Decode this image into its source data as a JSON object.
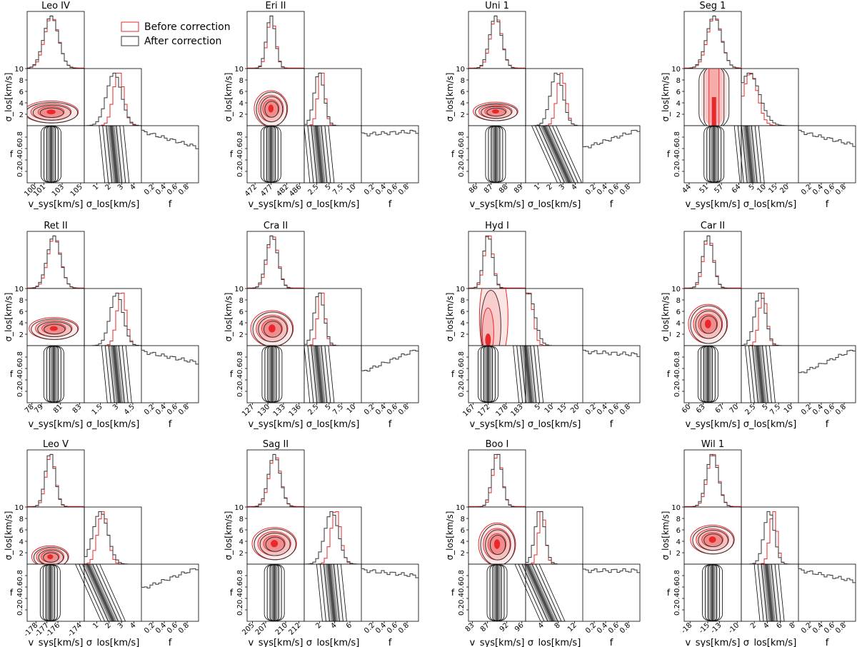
{
  "figure": {
    "legend": [
      {
        "label": "Before correction",
        "color": "#e8282a"
      },
      {
        "label": "After correction",
        "color": "#333333"
      }
    ],
    "colors": {
      "before": "#e8282a",
      "after": "#333333",
      "grey_density": "#222222"
    }
  },
  "chart_data": [
    {
      "type": "heatmap",
      "title": "Leo IV",
      "xlabels": [
        "v_sys[km/s]",
        "σ_los[km/s]",
        "f"
      ],
      "ylabels": [
        "σ_los[km/s]",
        "f"
      ],
      "v_sys": {
        "ticks": [
          100,
          101,
          103,
          105
        ],
        "range": [
          99.2,
          105.4
        ],
        "peak": 101.8,
        "width": 0.8
      },
      "sigma": {
        "ticks": [
          1,
          2,
          3,
          4
        ],
        "range": [
          0,
          4.6
        ],
        "peak": 2.4,
        "width": 0.6,
        "ylim": [
          0,
          10
        ],
        "ytick": [
          2,
          4,
          6,
          8,
          10
        ]
      },
      "f": {
        "ticks": [
          0.2,
          0.4,
          0.6,
          0.8
        ],
        "slope": -0.3
      },
      "mode": "normal"
    },
    {
      "type": "heatmap",
      "title": "Eri II",
      "xlabels": [
        "v_sys[km/s]",
        "σ_los[km/s]",
        "f"
      ],
      "ylabels": [
        "σ_los[km/s]",
        "f"
      ],
      "v_sys": {
        "ticks": [
          472,
          477,
          482,
          486
        ],
        "range": [
          469.5,
          487.5
        ],
        "peak": 477,
        "width": 1.4
      },
      "sigma": {
        "ticks": [
          2.5,
          5.0,
          7.5,
          10.0
        ],
        "range": [
          0,
          11.5
        ],
        "peak": 3.0,
        "width": 1.0,
        "ylim": [
          0,
          10
        ],
        "ytick": [
          2,
          4,
          6,
          8,
          10
        ]
      },
      "f": {
        "ticks": [
          0.2,
          0.4,
          0.6,
          0.8
        ],
        "slope": 0.05
      },
      "mode": "normal"
    },
    {
      "type": "heatmap",
      "title": "Uni 1",
      "xlabels": [
        "v_sys[km/s]",
        "σ_los[km/s]",
        "f"
      ],
      "ylabels": [
        "σ_los[km/s]",
        "f"
      ],
      "v_sys": {
        "ticks": [
          86,
          87,
          88,
          89
        ],
        "range": [
          85.5,
          89.3
        ],
        "peak": 87.3,
        "width": 0.4
      },
      "sigma": {
        "ticks": [
          1,
          2,
          3,
          4
        ],
        "range": [
          0,
          4.6
        ],
        "peak": 2.5,
        "width": 0.5,
        "ylim": [
          0,
          10
        ],
        "ytick": [
          2,
          4,
          6,
          8,
          10
        ]
      },
      "f": {
        "ticks": [
          0.2,
          0.4,
          0.6,
          0.8
        ],
        "slope": 0.35
      },
      "mode": "diag"
    },
    {
      "type": "heatmap",
      "title": "Seg 1",
      "xlabels": [
        "v_sys[km/s]",
        "σ_los[km/s]",
        "f"
      ],
      "ylabels": [
        "σ_los[km/s]",
        "f"
      ],
      "v_sys": {
        "ticks": [
          44,
          51,
          57,
          64
        ],
        "range": [
          42,
          65
        ],
        "peak": 54,
        "width": 3.0
      },
      "sigma": {
        "ticks": [
          5,
          10,
          15,
          20
        ],
        "range": [
          0,
          25
        ],
        "peak": 3.5,
        "width": 4.5,
        "ylim": [
          0,
          10
        ],
        "ytick": [
          2,
          4,
          6,
          8,
          10
        ]
      },
      "f": {
        "ticks": [
          0.2,
          0.4,
          0.6,
          0.8
        ],
        "slope": -0.25
      },
      "mode": "seg"
    },
    {
      "type": "heatmap",
      "title": "Ret II",
      "xlabels": [
        "v_sys[km/s]",
        "σ_los[km/s]",
        "f"
      ],
      "ylabels": [
        "σ_los[km/s]",
        "f"
      ],
      "v_sys": {
        "ticks": [
          78,
          79,
          81,
          83
        ],
        "range": [
          77.5,
          83.5
        ],
        "peak": 80.3,
        "width": 0.7
      },
      "sigma": {
        "ticks": [
          1.5,
          3.0,
          4.5
        ],
        "range": [
          0,
          5.3
        ],
        "peak": 3.0,
        "width": 0.6,
        "ylim": [
          0,
          10
        ],
        "ytick": [
          2,
          4,
          6,
          8,
          10
        ]
      },
      "f": {
        "ticks": [
          0.2,
          0.4,
          0.6,
          0.8
        ],
        "slope": -0.2
      },
      "mode": "normal"
    },
    {
      "type": "heatmap",
      "title": "Cra II",
      "xlabels": [
        "v_sys[km/s]",
        "σ_los[km/s]",
        "f"
      ],
      "ylabels": [
        "σ_los[km/s]",
        "f"
      ],
      "v_sys": {
        "ticks": [
          127,
          130,
          133,
          136
        ],
        "range": [
          126,
          137
        ],
        "peak": 130.8,
        "width": 1.1
      },
      "sigma": {
        "ticks": [
          2.5,
          5.0,
          7.5,
          10.0
        ],
        "range": [
          0,
          11.5
        ],
        "peak": 3.0,
        "width": 1.0,
        "ylim": [
          0,
          10
        ],
        "ytick": [
          2,
          4,
          6,
          8,
          10
        ]
      },
      "f": {
        "ticks": [
          0.2,
          0.4,
          0.6,
          0.8
        ],
        "slope": 0.45
      },
      "mode": "normal"
    },
    {
      "type": "heatmap",
      "title": "Hyd I",
      "xlabels": [
        "v_sys[km/s]",
        "σ_los[km/s]",
        "f"
      ],
      "ylabels": [
        "σ_los[km/s]",
        "f"
      ],
      "v_sys": {
        "ticks": [
          167,
          172,
          178,
          183
        ],
        "range": [
          165.5,
          184.5
        ],
        "peak": 172,
        "width": 1.5
      },
      "sigma": {
        "ticks": [
          5,
          10,
          15,
          20
        ],
        "range": [
          0,
          22
        ],
        "peak": 1.0,
        "width": 2.5,
        "ylim": [
          0,
          10
        ],
        "ytick": [
          2,
          4,
          6,
          8,
          10
        ]
      },
      "f": {
        "ticks": [
          0.2,
          0.4,
          0.6,
          0.8
        ],
        "slope": -0.05
      },
      "mode": "hyd"
    },
    {
      "type": "heatmap",
      "title": "Car II",
      "xlabels": [
        "v_sys[km/s]",
        "σ_los[km/s]",
        "f"
      ],
      "ylabels": [
        "σ_los[km/s]",
        "f"
      ],
      "v_sys": {
        "ticks": [
          60,
          63,
          67,
          70
        ],
        "range": [
          59,
          71
        ],
        "peak": 64,
        "width": 1.1
      },
      "sigma": {
        "ticks": [
          2.5,
          5.0,
          7.5,
          10.0
        ],
        "range": [
          0,
          11.5
        ],
        "peak": 3.8,
        "width": 1.1,
        "ylim": [
          0,
          10
        ],
        "ytick": [
          2,
          4,
          6,
          8,
          10
        ]
      },
      "f": {
        "ticks": [
          0.2,
          0.4,
          0.6,
          0.8
        ],
        "slope": 0.5
      },
      "mode": "normal"
    },
    {
      "type": "heatmap",
      "title": "Leo V",
      "xlabels": [
        "v_sys[km/s]",
        "σ_los[km/s]",
        "f"
      ],
      "ylabels": [
        "σ_los[km/s]",
        "f"
      ],
      "v_sys": {
        "ticks": [
          -178,
          -177,
          -176,
          -174
        ],
        "range": [
          -178.8,
          -173.6
        ],
        "peak": -176.7,
        "width": 0.45
      },
      "sigma": {
        "ticks": [
          1,
          2,
          3,
          4
        ],
        "range": [
          0,
          4.6
        ],
        "peak": 1.3,
        "width": 0.6,
        "ylim": [
          0,
          10
        ],
        "ytick": [
          2,
          4,
          6,
          8,
          10
        ]
      },
      "f": {
        "ticks": [
          0.2,
          0.4,
          0.6,
          0.8
        ],
        "slope": 0.4
      },
      "mode": "diag"
    },
    {
      "type": "heatmap",
      "title": "Sag II",
      "xlabels": [
        "v_sys[km/s]",
        "σ_los[km/s]",
        "f"
      ],
      "ylabels": [
        "σ_los[km/s]",
        "f"
      ],
      "v_sys": {
        "ticks": [
          205,
          207,
          210,
          212
        ],
        "range": [
          204.2,
          212.8
        ],
        "peak": 208.3,
        "width": 0.9
      },
      "sigma": {
        "ticks": [
          2,
          4,
          6
        ],
        "range": [
          0,
          7.5
        ],
        "peak": 3.6,
        "width": 0.9,
        "ylim": [
          0,
          10
        ],
        "ytick": [
          2,
          4,
          6,
          8,
          10
        ]
      },
      "f": {
        "ticks": [
          0.2,
          0.4,
          0.6,
          0.8
        ],
        "slope": -0.1
      },
      "mode": "normal"
    },
    {
      "type": "heatmap",
      "title": "Boo I",
      "xlabels": [
        "v_sys[km/s]",
        "σ_los[km/s]",
        "f"
      ],
      "ylabels": [
        "σ_los[km/s]",
        "f"
      ],
      "v_sys": {
        "ticks": [
          83,
          87,
          92,
          96
        ],
        "range": [
          82,
          97
        ],
        "peak": 89.5,
        "width": 1.3
      },
      "sigma": {
        "ticks": [
          4,
          8,
          12
        ],
        "range": [
          0,
          14
        ],
        "peak": 3.5,
        "width": 1.2,
        "ylim": [
          0,
          10
        ],
        "ytick": [
          2,
          4,
          6,
          8,
          10
        ]
      },
      "f": {
        "ticks": [
          0.2,
          0.4,
          0.6,
          0.8
        ],
        "slope": 0.0
      },
      "mode": "diag"
    },
    {
      "type": "heatmap",
      "title": "Wil 1",
      "xlabels": [
        "v_sys[km/s]",
        "σ_los[km/s]",
        "f"
      ],
      "ylabels": [
        "σ_los[km/s]",
        "f"
      ],
      "v_sys": {
        "ticks": [
          -18,
          -15,
          -13,
          -10
        ],
        "range": [
          -19,
          -9.3
        ],
        "peak": -14.2,
        "width": 1.0
      },
      "sigma": {
        "ticks": [
          2,
          4,
          6,
          8
        ],
        "range": [
          0,
          8.8
        ],
        "peak": 4.3,
        "width": 0.8,
        "ylim": [
          0,
          10
        ],
        "ytick": [
          2,
          4,
          6,
          8,
          10
        ]
      },
      "f": {
        "ticks": [
          0.2,
          0.4,
          0.6,
          0.8
        ],
        "slope": -0.2
      },
      "mode": "normal"
    }
  ]
}
